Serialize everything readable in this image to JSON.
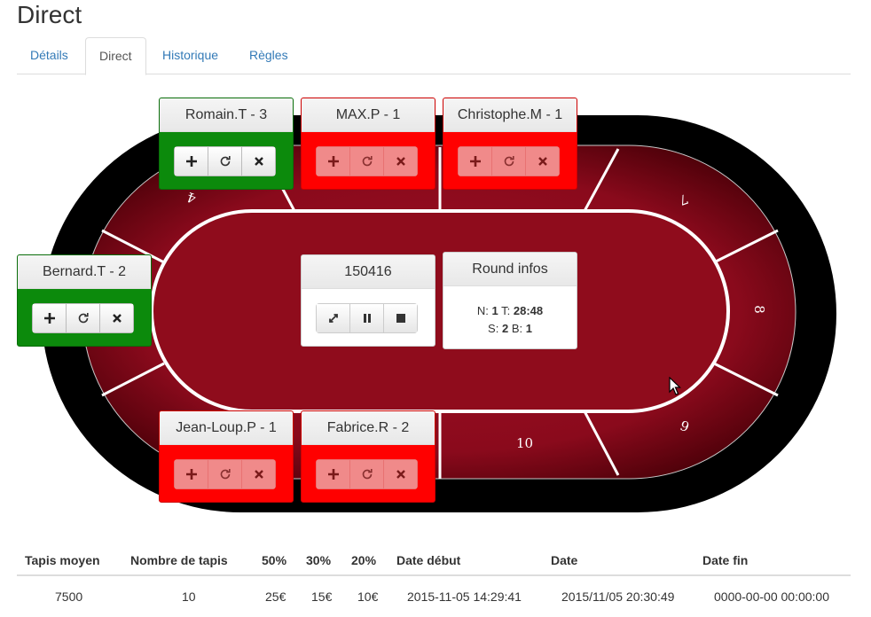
{
  "page_title": "Direct",
  "tabs": [
    {
      "label": "Détails"
    },
    {
      "label": "Direct"
    },
    {
      "label": "Historique"
    },
    {
      "label": "Règles"
    }
  ],
  "seat_numbers": [
    "4",
    "7",
    "8",
    "9",
    "10"
  ],
  "players": [
    {
      "name": "Romain.T - 3",
      "status": "green"
    },
    {
      "name": "MAX.P - 1",
      "status": "red"
    },
    {
      "name": "Christophe.M - 1",
      "status": "red"
    },
    {
      "name": "Bernard.T - 2",
      "status": "green"
    },
    {
      "name": "Jean-Loup.P - 1",
      "status": "red"
    },
    {
      "name": "Fabrice.R - 2",
      "status": "red"
    }
  ],
  "timer": {
    "value": "150416"
  },
  "round": {
    "title": "Round infos",
    "n_label": "N:",
    "n_value": "1",
    "t_label": "T:",
    "t_value": "28:48",
    "s_label": "S:",
    "s_value": "2",
    "b_label": "B:",
    "b_value": "1"
  },
  "stats": {
    "headers": [
      "Tapis moyen",
      "Nombre de tapis",
      "50%",
      "30%",
      "20%",
      "Date début",
      "Date",
      "Date fin"
    ],
    "values": [
      "7500",
      "10",
      "25€",
      "15€",
      "10€",
      "2015-11-05 14:29:41",
      "2015/11/05 20:30:49",
      "0000-00-00 00:00:00"
    ]
  },
  "colors": {
    "felt": "#8b0a1a",
    "rail": "#000000",
    "active": "#0c8a0c",
    "inactive": "#ff0000"
  }
}
